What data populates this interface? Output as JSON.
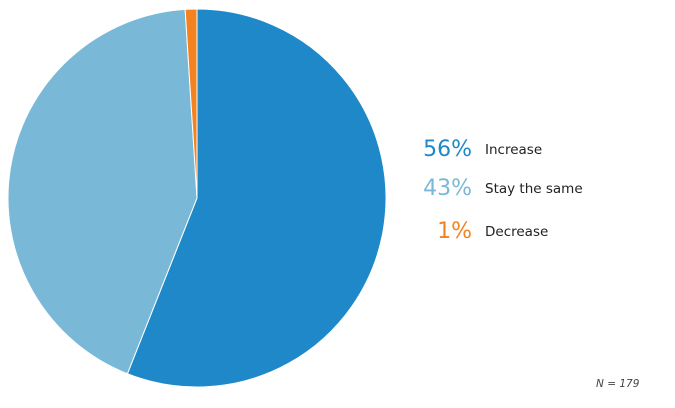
{
  "chart_data": {
    "type": "pie",
    "slices": [
      {
        "label": "Increase",
        "value": 56,
        "display": "56%",
        "color": "#1f88c8"
      },
      {
        "label": "Stay the same",
        "value": 43,
        "display": "43%",
        "color": "#7ab8d8"
      },
      {
        "label": "Decrease",
        "value": 1,
        "display": "1%",
        "color": "#f58220"
      }
    ],
    "legend_position": "right",
    "footnote": "N = 179"
  }
}
